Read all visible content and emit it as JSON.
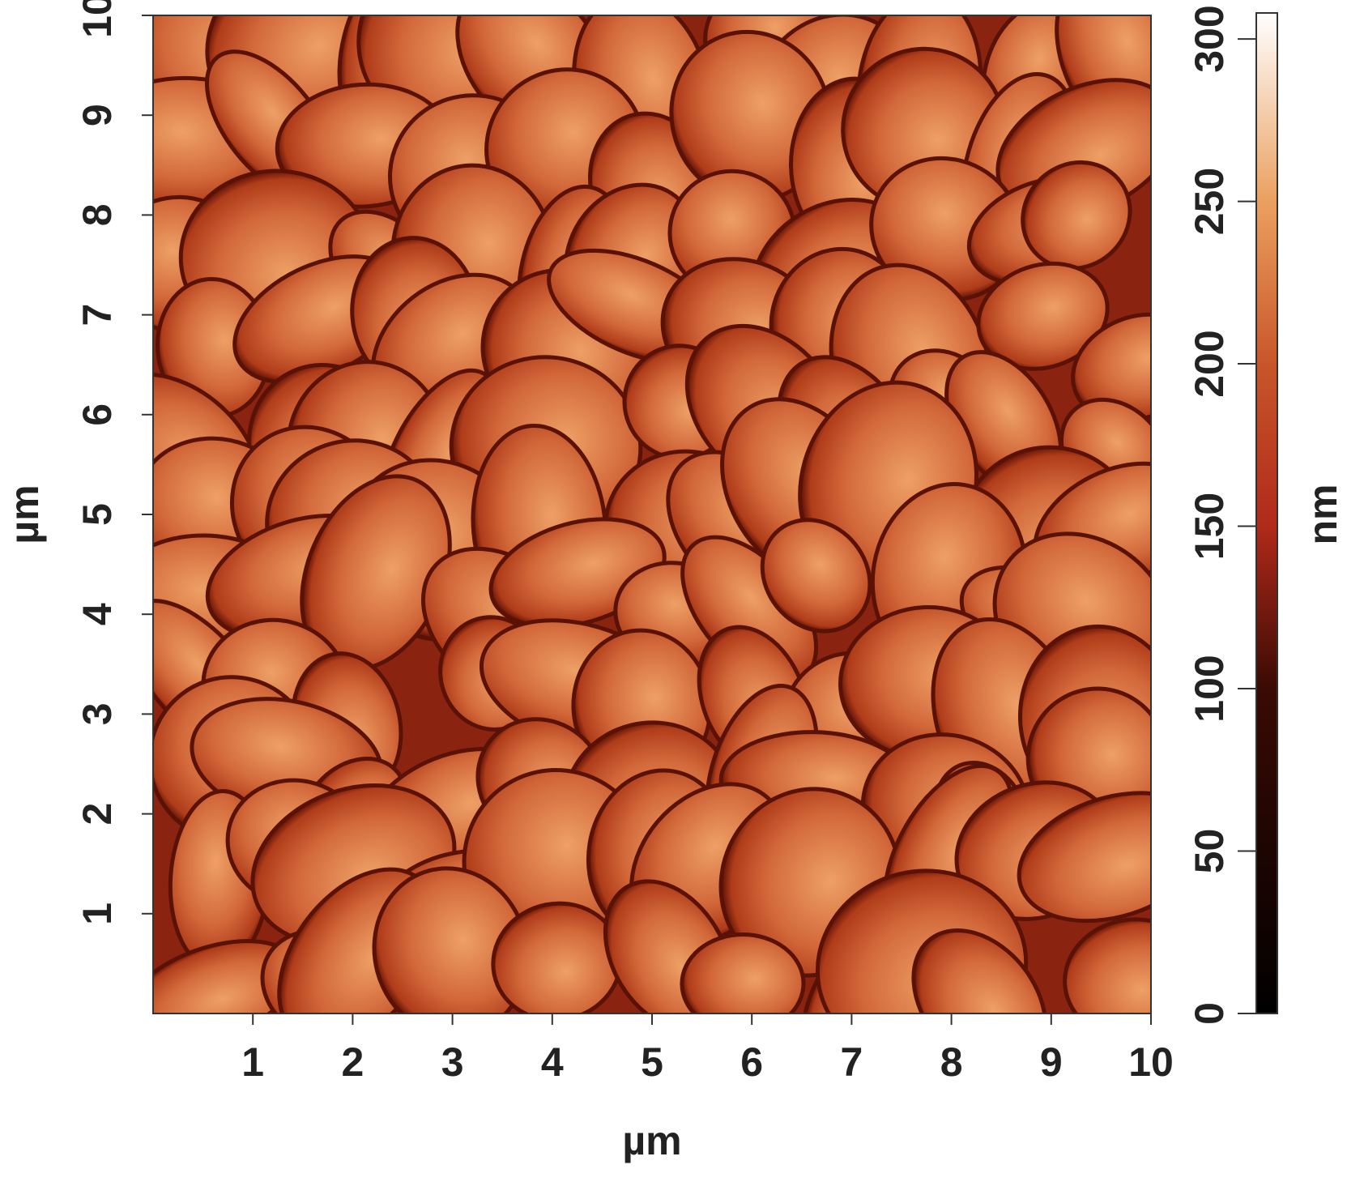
{
  "chart_data": {
    "type": "heatmap",
    "xlabel": "µm",
    "ylabel": "µm",
    "xlim": [
      0,
      10
    ],
    "xticks": [
      1,
      2,
      3,
      4,
      5,
      6,
      7,
      8,
      9,
      10
    ],
    "ylim": [
      0,
      10
    ],
    "yticks": [
      1,
      2,
      3,
      4,
      5,
      6,
      7,
      8,
      9,
      10
    ],
    "colorbar": {
      "label": "nm",
      "lim": [
        0,
        308
      ],
      "ticks": [
        0,
        50,
        100,
        150,
        200,
        250,
        300
      ],
      "colors": [
        [
          0,
          "#000000"
        ],
        [
          100,
          "#3a0a04"
        ],
        [
          150,
          "#b02a1a"
        ],
        [
          200,
          "#c8562a"
        ],
        [
          250,
          "#eaa060"
        ],
        [
          308,
          "#ffffff"
        ]
      ]
    }
  }
}
